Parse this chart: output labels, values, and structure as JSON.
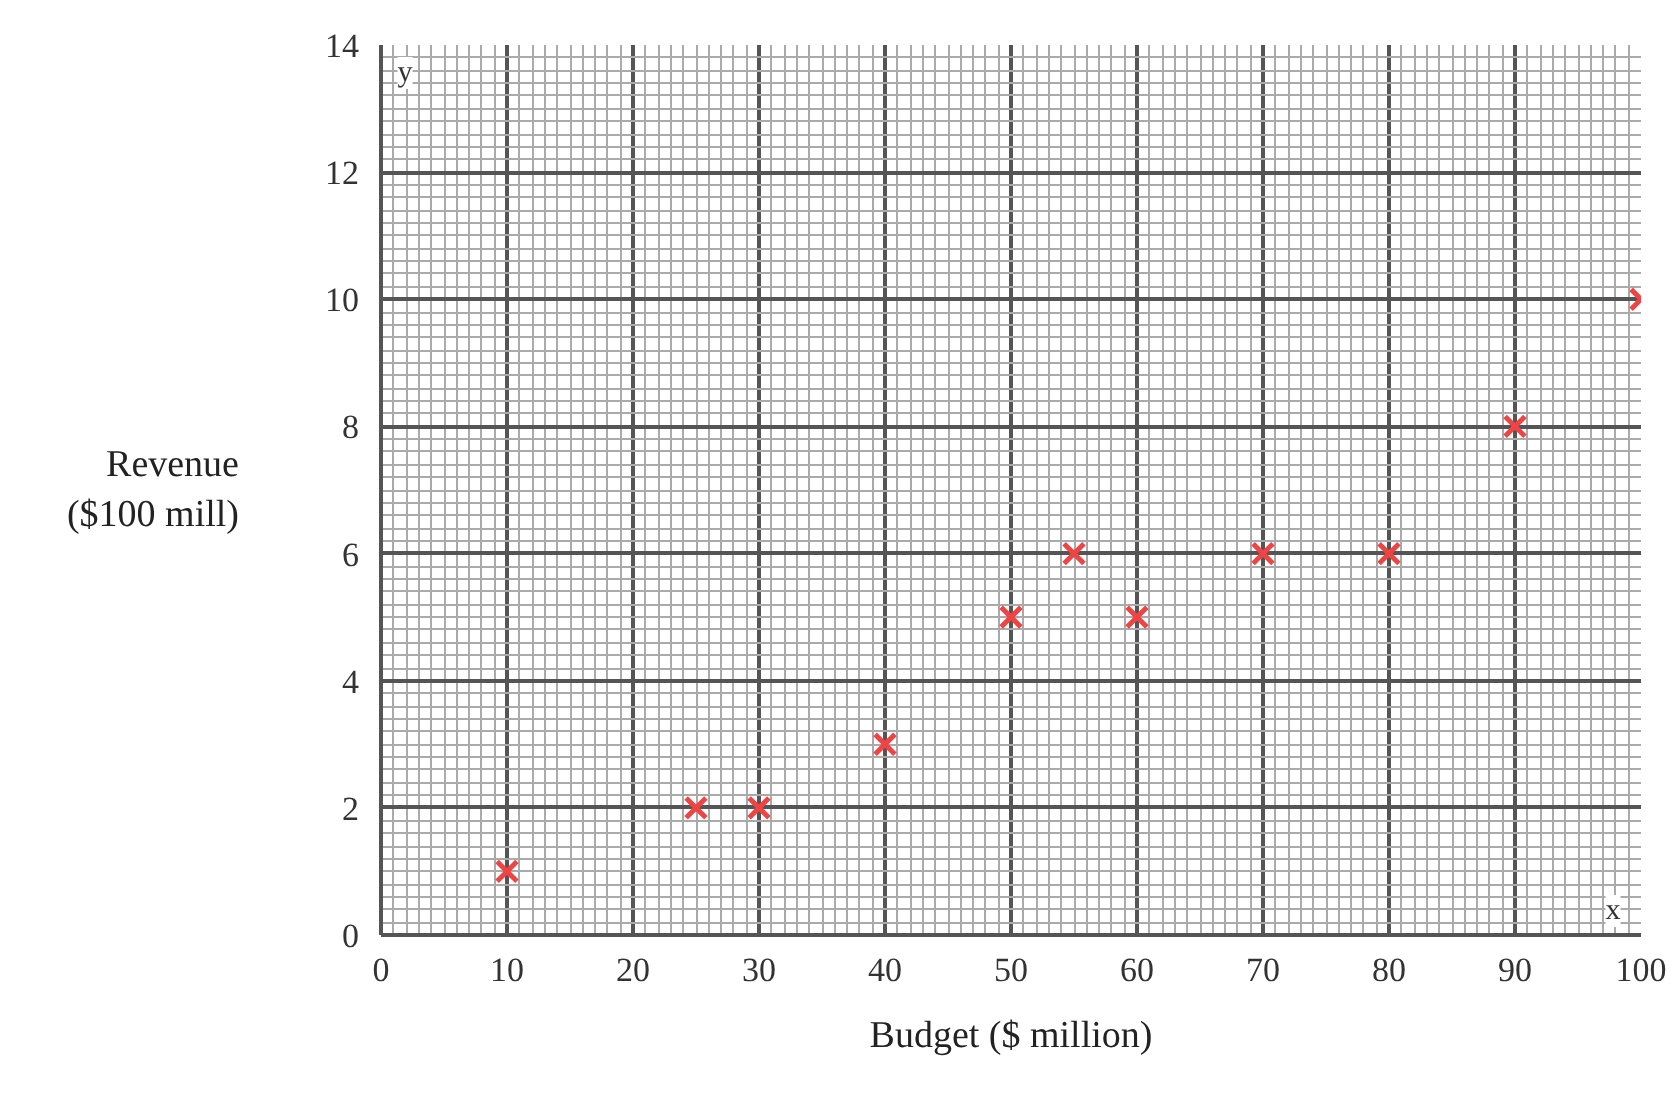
{
  "chart_data": {
    "type": "scatter",
    "xlabel": "Budget ($ million)",
    "ylabel": "Revenue ($100 mill)",
    "x": [
      10,
      25,
      30,
      40,
      50,
      55,
      60,
      70,
      80,
      90,
      100
    ],
    "values": [
      1,
      2,
      2,
      3,
      5,
      6,
      5,
      6,
      6,
      8,
      10
    ],
    "color": "#ee4444",
    "marker": "cross",
    "grid": true,
    "xlim": [
      0,
      100
    ],
    "xticks": [
      0,
      10,
      20,
      30,
      40,
      50,
      60,
      70,
      80,
      90,
      100
    ],
    "ylim": [
      0,
      14
    ],
    "yticks": [
      0,
      2,
      4,
      6,
      8,
      10,
      12,
      14
    ],
    "annotations": [
      "x",
      "y"
    ]
  }
}
